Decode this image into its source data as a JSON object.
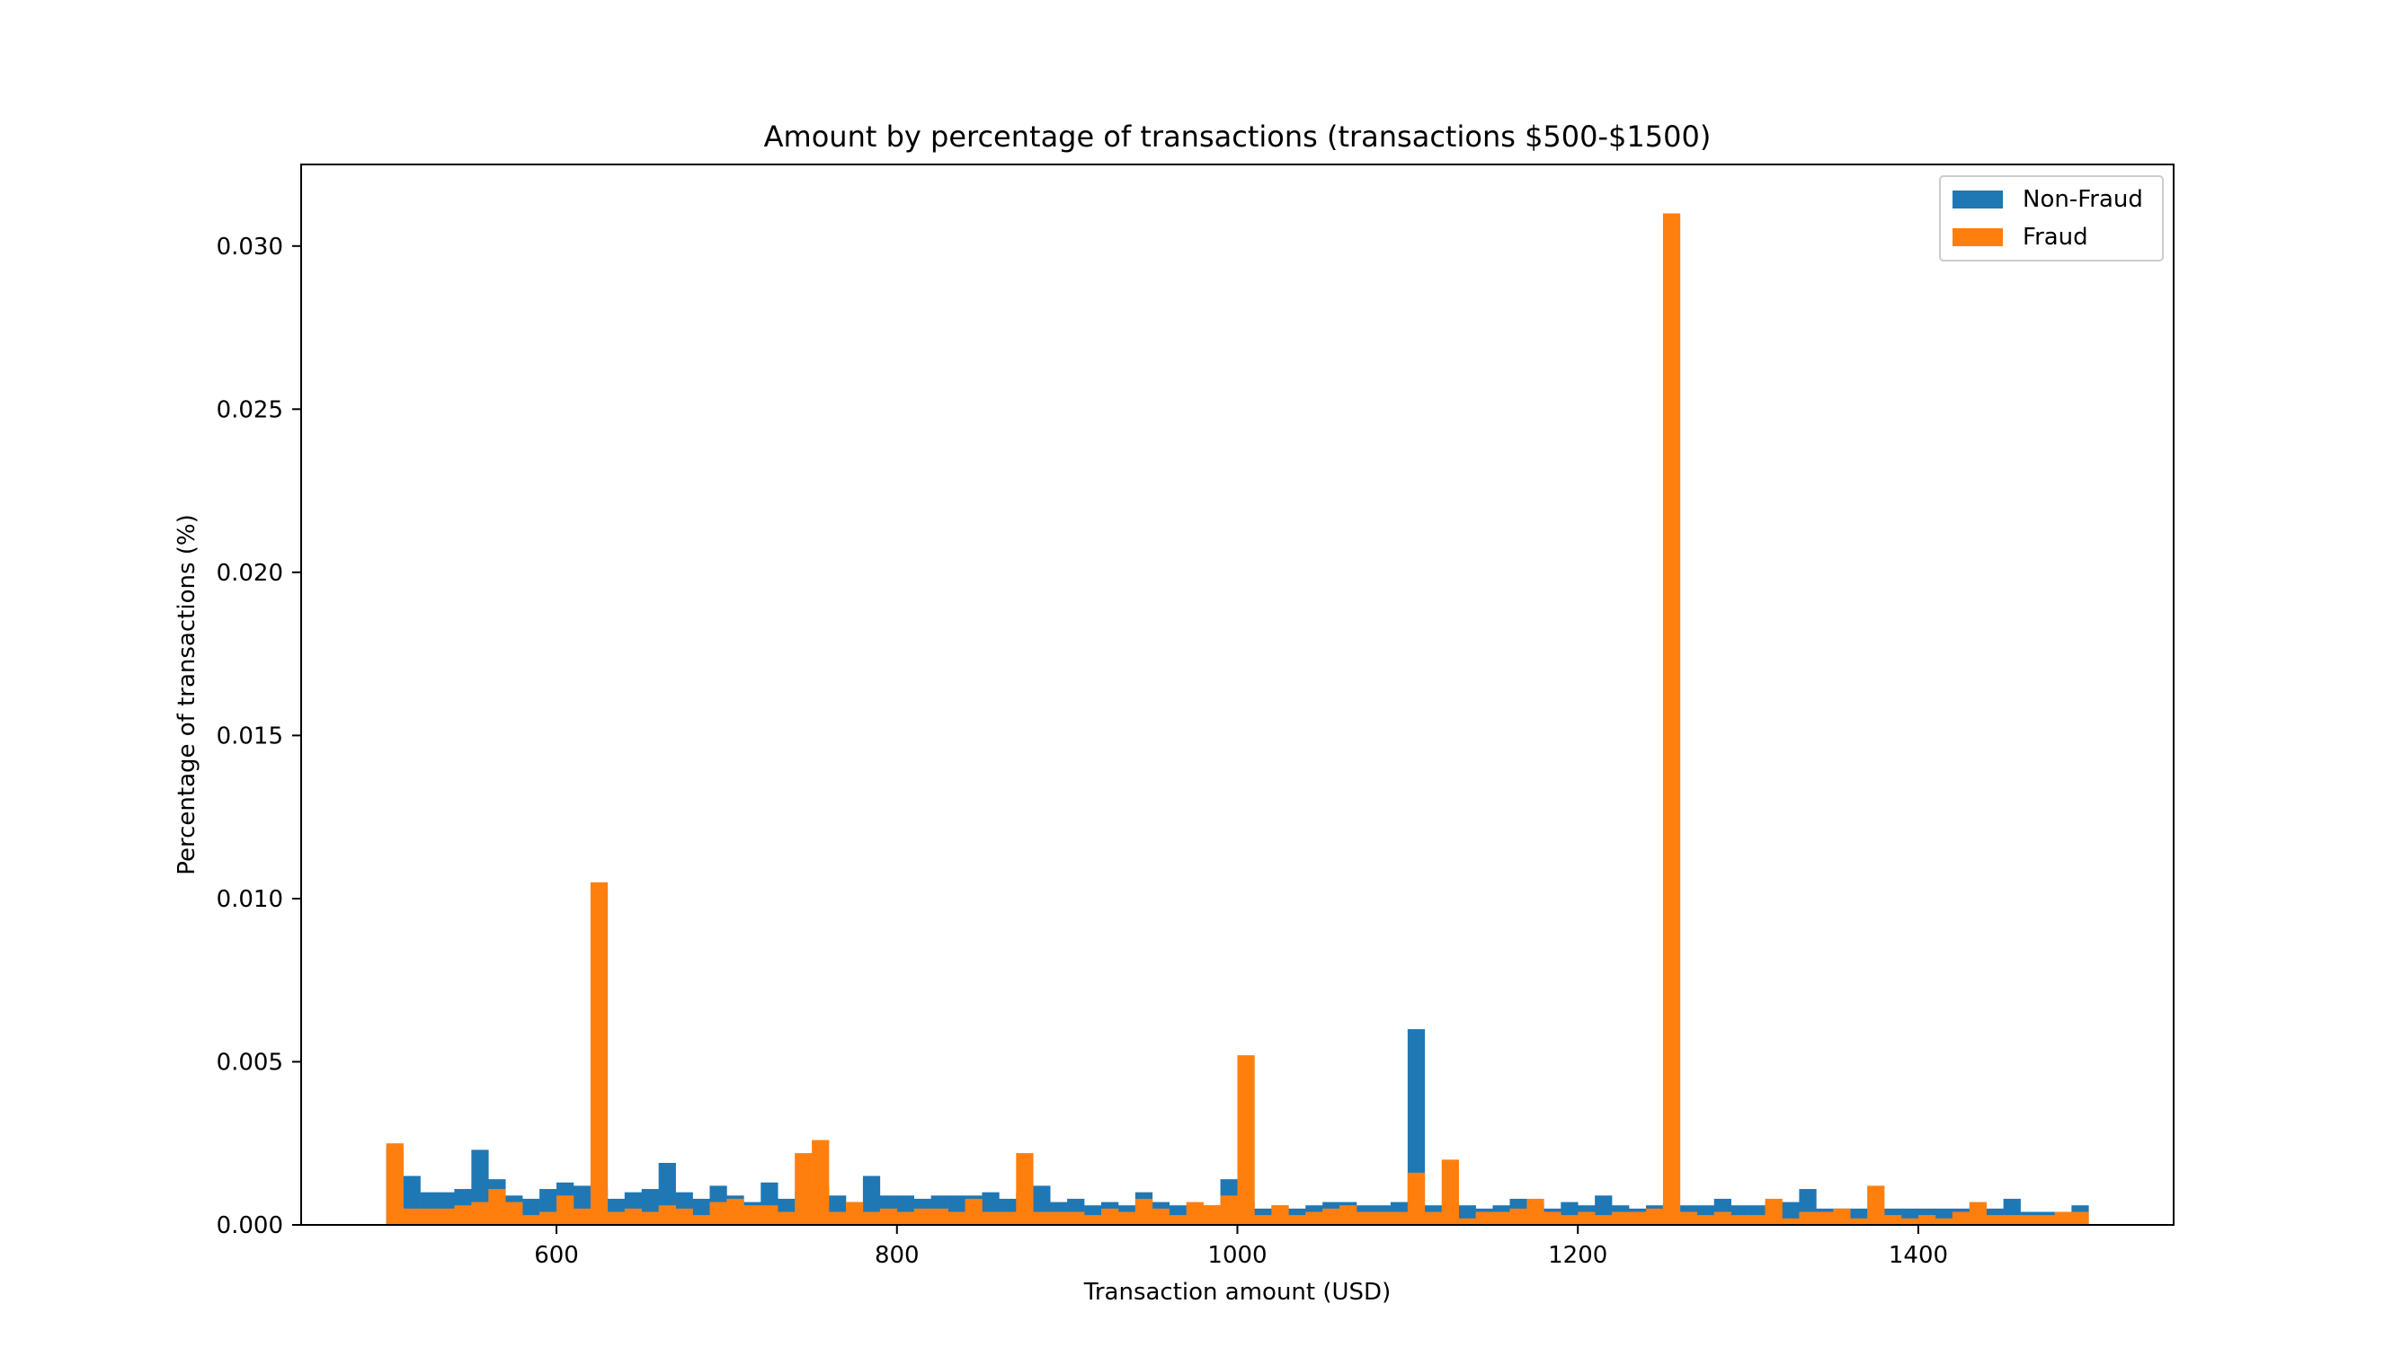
{
  "chart_data": {
    "type": "bar",
    "title": "Amount by percentage of transactions (transactions $500-$1500)",
    "xlabel": "Transaction amount (USD)",
    "ylabel": "Percentage of transactions (%)",
    "xlim": [
      450,
      1550
    ],
    "ylim": [
      0,
      0.0325
    ],
    "xticks": [
      600,
      800,
      1000,
      1200,
      1400
    ],
    "xtick_labels": [
      "600",
      "800",
      "1000",
      "1200",
      "1400"
    ],
    "yticks": [
      0.0,
      0.005,
      0.01,
      0.015,
      0.02,
      0.025,
      0.03
    ],
    "ytick_labels": [
      "0.000",
      "0.005",
      "0.010",
      "0.015",
      "0.020",
      "0.025",
      "0.030"
    ],
    "grid": false,
    "legend_position": "top-right",
    "bin_start": 500,
    "bin_width": 10,
    "series": [
      {
        "name": "Non-Fraud",
        "color": "#1f77b4",
        "values": [
          0.0024,
          0.0015,
          0.001,
          0.001,
          0.0011,
          0.0023,
          0.0014,
          0.0009,
          0.0008,
          0.0011,
          0.0013,
          0.0012,
          0.0011,
          0.0008,
          0.001,
          0.0011,
          0.0019,
          0.001,
          0.0008,
          0.0012,
          0.0009,
          0.0007,
          0.0013,
          0.0008,
          0.001,
          0.0012,
          0.0009,
          0.0007,
          0.0015,
          0.0009,
          0.0009,
          0.0008,
          0.0009,
          0.0009,
          0.0009,
          0.001,
          0.0008,
          0.001,
          0.0012,
          0.0007,
          0.0008,
          0.0006,
          0.0007,
          0.0006,
          0.001,
          0.0007,
          0.0006,
          0.0006,
          0.0006,
          0.0014,
          0.0007,
          0.0005,
          0.0006,
          0.0005,
          0.0006,
          0.0007,
          0.0007,
          0.0006,
          0.0006,
          0.0007,
          0.006,
          0.0006,
          0.0006,
          0.0006,
          0.0005,
          0.0006,
          0.0008,
          0.0006,
          0.0005,
          0.0007,
          0.0006,
          0.0009,
          0.0006,
          0.0005,
          0.0006,
          0.0005,
          0.0006,
          0.0006,
          0.0008,
          0.0006,
          0.0006,
          0.0007,
          0.0007,
          0.0011,
          0.0005,
          0.0005,
          0.0005,
          0.0005,
          0.0005,
          0.0005,
          0.0005,
          0.0005,
          0.0005,
          0.0004,
          0.0005,
          0.0008,
          0.0004,
          0.0004,
          0.0004,
          0.0006
        ]
      },
      {
        "name": "Fraud",
        "color": "#ff7f0e",
        "values": [
          0.0025,
          0.0005,
          0.0005,
          0.0005,
          0.0006,
          0.0007,
          0.0011,
          0.0007,
          0.0003,
          0.0004,
          0.0009,
          0.0005,
          0.0105,
          0.0004,
          0.0005,
          0.0004,
          0.0006,
          0.0005,
          0.0003,
          0.0007,
          0.0008,
          0.0006,
          0.0006,
          0.0004,
          0.0022,
          0.0026,
          0.0004,
          0.0007,
          0.0004,
          0.0005,
          0.0004,
          0.0005,
          0.0005,
          0.0004,
          0.0008,
          0.0004,
          0.0004,
          0.0022,
          0.0004,
          0.0004,
          0.0004,
          0.0003,
          0.0005,
          0.0004,
          0.0008,
          0.0005,
          0.0003,
          0.0007,
          0.0006,
          0.0009,
          0.0052,
          0.0003,
          0.0006,
          0.0003,
          0.0004,
          0.0005,
          0.0006,
          0.0004,
          0.0004,
          0.0004,
          0.0016,
          0.0004,
          0.002,
          0.0002,
          0.0004,
          0.0004,
          0.0005,
          0.0008,
          0.0004,
          0.0003,
          0.0004,
          0.0003,
          0.0004,
          0.0004,
          0.0005,
          0.031,
          0.0004,
          0.0003,
          0.0004,
          0.0003,
          0.0003,
          0.0008,
          0.0002,
          0.0004,
          0.0004,
          0.0005,
          0.0002,
          0.0012,
          0.0003,
          0.0002,
          0.0003,
          0.0002,
          0.0004,
          0.0007,
          0.0003,
          0.0003,
          0.0003,
          0.0003,
          0.0004,
          0.0004
        ]
      }
    ]
  }
}
